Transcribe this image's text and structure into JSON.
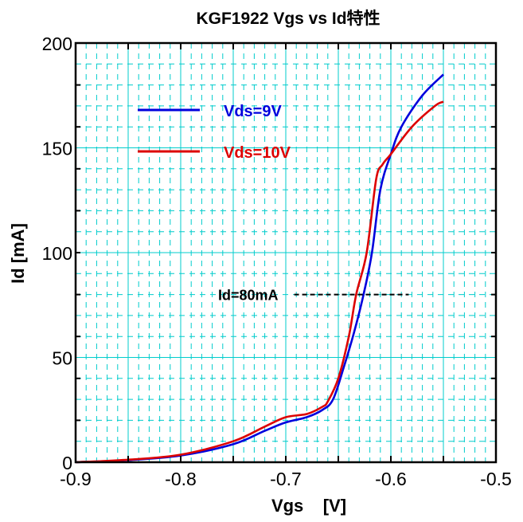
{
  "chart_data": {
    "type": "line",
    "title": "KGF1922 Vgs vs Id特性",
    "xlabel": "Vgs    [V]",
    "ylabel": "Id [mA]",
    "xlim": [
      -0.9,
      -0.5
    ],
    "ylim": [
      0,
      200
    ],
    "xticks": [
      "-0.9",
      "-0.8",
      "-0.7",
      "-0.6",
      "-0.5"
    ],
    "xtick_values": [
      -0.9,
      -0.8,
      -0.7,
      -0.6,
      -0.5
    ],
    "yticks": [
      "0",
      "50",
      "100",
      "150",
      "200"
    ],
    "ytick_values": [
      0,
      50,
      100,
      150,
      200
    ],
    "grid": {
      "major_x": 0.05,
      "minor_x": 0.01,
      "major_y": 50,
      "minor_y": 10,
      "color": "#00cccc"
    },
    "legend_placement": "top-left",
    "series": [
      {
        "name": "Vds=9V",
        "color": "#0000dd",
        "x": [
          -0.9,
          -0.85,
          -0.8,
          -0.75,
          -0.72,
          -0.7,
          -0.68,
          -0.665,
          -0.655,
          -0.645,
          -0.635,
          -0.626,
          -0.618,
          -0.61,
          -0.6,
          -0.59,
          -0.57,
          -0.55
        ],
        "y": [
          0,
          1,
          3.2,
          8.6,
          15,
          19,
          21.5,
          25,
          30,
          45,
          62,
          80,
          100,
          130,
          147,
          160,
          175,
          185
        ]
      },
      {
        "name": "Vds=10V",
        "color": "#dd0000",
        "x": [
          -0.9,
          -0.85,
          -0.8,
          -0.75,
          -0.72,
          -0.7,
          -0.68,
          -0.665,
          -0.66,
          -0.65,
          -0.64,
          -0.633,
          -0.623,
          -0.614,
          -0.608,
          -0.6,
          -0.58,
          -0.558,
          -0.55
        ],
        "y": [
          0,
          1.2,
          3.6,
          10,
          17,
          21.5,
          23,
          26.5,
          29,
          40,
          60,
          80,
          100,
          135,
          142,
          147,
          160,
          170,
          172
        ]
      }
    ],
    "annotations": [
      {
        "text": "Id=80mA",
        "line_style": "dashed",
        "color": "#000000",
        "y": 80,
        "x_range": [
          -0.692,
          -0.583
        ]
      }
    ]
  }
}
